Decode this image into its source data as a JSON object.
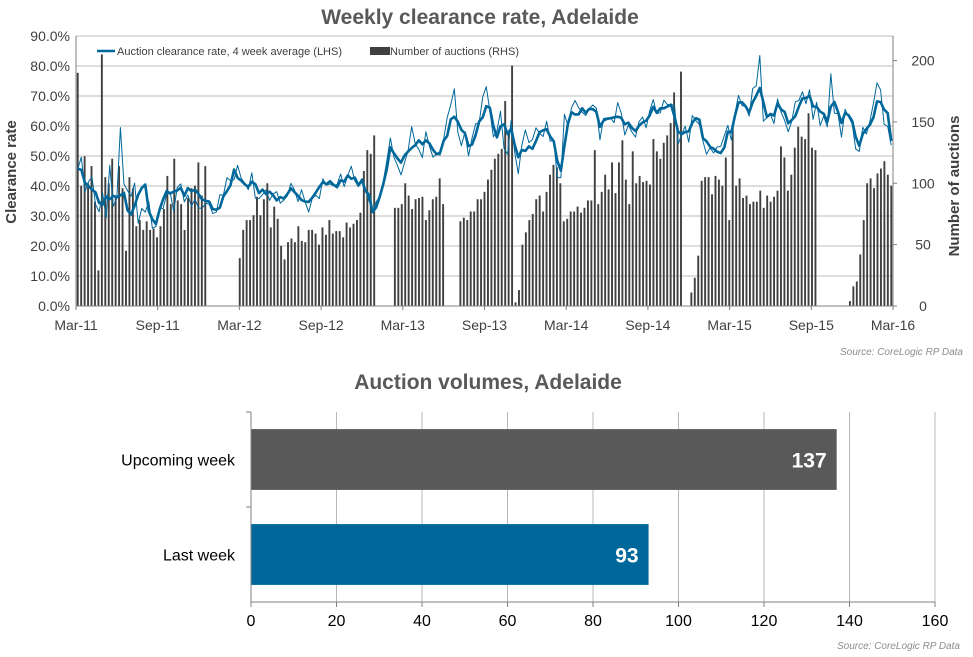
{
  "chart_data": [
    {
      "type": "line",
      "title": "Weekly clearance rate, Adelaide",
      "ylabel": "Clearance rate",
      "y2label": "Number of auctions",
      "source": "Source: CoreLogic  RP Data",
      "x_ticks": [
        "Mar-11",
        "Sep-11",
        "Mar-12",
        "Sep-12",
        "Mar-13",
        "Sep-13",
        "Mar-14",
        "Sep-14",
        "Mar-15",
        "Sep-15",
        "Mar-16"
      ],
      "y_ticks": [
        "0.0%",
        "10.0%",
        "20.0%",
        "30.0%",
        "40.0%",
        "50.0%",
        "60.0%",
        "70.0%",
        "80.0%",
        "90.0%"
      ],
      "y2_ticks": [
        "0",
        "50",
        "100",
        "150",
        "200"
      ],
      "ylim": [
        0,
        90
      ],
      "y2lim": [
        0,
        220
      ],
      "grid": true,
      "legend_position": "top-left",
      "colors": {
        "line": "#00679b",
        "bars": "#404040",
        "grid": "#a6a6a6"
      },
      "series": [
        {
          "name": "Auction clearance rate, 4 week average (LHS)",
          "type": "line",
          "values": [
            45.8,
            45.4,
            41.1,
            40.0,
            38.8,
            37.9,
            34.4,
            33.8,
            36.5,
            35.6,
            36.7,
            36.3,
            36.9,
            37.7,
            31.9,
            30.5,
            33.4,
            37.1,
            39.3,
            40.5,
            31.6,
            28.9,
            27.3,
            32.0,
            35.5,
            38.3,
            37.5,
            38.1,
            38.5,
            39.4,
            36.7,
            39.3,
            38.2,
            38.8,
            37.3,
            35.5,
            35.1,
            34.8,
            32.3,
            32.1,
            32.8,
            36.6,
            38.3,
            40.3,
            45.5,
            42.7,
            41.8,
            40.6,
            39.7,
            41.4,
            40.6,
            37.6,
            38.8,
            37.3,
            38.1,
            36.9,
            35.2,
            36.3,
            35.8,
            37.3,
            39.2,
            38.0,
            36.7,
            35.3,
            34.8,
            34.7,
            36.1,
            37.8,
            39.7,
            41.3,
            40.6,
            41.6,
            40.4,
            39.6,
            41.9,
            41.5,
            43.5,
            42.4,
            42.8,
            40.2,
            42.0,
            38.3,
            37.1,
            31.3,
            32.9,
            36.4,
            40.6,
            45.6,
            52.9,
            50.9,
            49.2,
            47.8,
            50.2,
            51.5,
            52.7,
            53.6,
            55.2,
            53.9,
            55.2,
            54.2,
            52.1,
            50.6,
            51.1,
            55.1,
            56.7,
            62.2,
            63.1,
            61.4,
            58.7,
            57.6,
            53.3,
            53.8,
            57.0,
            61.5,
            62.9,
            66.6,
            66.1,
            60.0,
            56.2,
            59.9,
            60.6,
            57.3,
            59.2,
            53.8,
            49.6,
            52.0,
            51.7,
            53.2,
            52.4,
            55.0,
            57.9,
            58.6,
            58.9,
            56.5,
            54.9,
            48.3,
            45.1,
            53.4,
            60.8,
            64.6,
            63.8,
            63.9,
            65.9,
            64.4,
            65.7,
            65.6,
            64.7,
            59.7,
            61.8,
            62.4,
            62.6,
            62.9,
            63.1,
            62.7,
            60.6,
            61.1,
            59.4,
            58.3,
            60.1,
            61.2,
            61.8,
            63.5,
            66.4,
            64.4,
            65.9,
            65.9,
            66.5,
            67.1,
            63.1,
            58.1,
            57.3,
            58.0,
            58.2,
            61.1,
            62.6,
            62.1,
            55.9,
            54.9,
            53.1,
            52.4,
            51.4,
            51.0,
            52.8,
            58.1,
            57.9,
            63.4,
            67.8,
            67.9,
            66.6,
            64.5,
            67.9,
            70.1,
            72.7,
            68.0,
            63.0,
            64.0,
            63.5,
            67.6,
            65.5,
            64.7,
            60.9,
            62.0,
            63.3,
            66.5,
            69.2,
            69.3,
            70.1,
            66.5,
            66.4,
            64.8,
            64.1,
            61.4,
            66.5,
            68.0,
            64.8,
            61.0,
            64.3,
            63.6,
            61.7,
            56.4,
            53.4,
            57.4,
            59.0,
            60.4,
            62.9,
            68.2,
            68.0,
            65.5,
            64.3,
            55.0
          ],
          "raw_values": [
            45.7,
            49.6,
            38.0,
            41.4,
            43.0,
            33.9,
            31.4,
            37.6,
            29.3,
            46.9,
            33.2,
            36.0,
            59.5,
            40.7,
            38.5,
            36.6,
            41.0,
            27.6,
            32.5,
            31.3,
            34.8,
            25.9,
            26.5,
            32.9,
            32.4,
            37.1,
            38.0,
            31.5,
            39.5,
            40.7,
            34.7,
            37.0,
            33.2,
            35.6,
            32.7,
            32.5,
            34.3,
            33.9,
            30.8,
            31.3,
            37.1,
            37.0,
            42.8,
            41.7,
            42.1,
            46.9,
            42.6,
            40.9,
            38.8,
            44.4,
            35.9,
            35.8,
            37.1,
            38.7,
            35.2,
            37.4,
            38.1,
            34.3,
            35.3,
            36.7,
            40.9,
            38.7,
            34.8,
            38.8,
            34.7,
            31.3,
            35.8,
            36.9,
            35.8,
            42.4,
            40.3,
            40.7,
            40.1,
            40.5,
            44.0,
            39.8,
            43.5,
            46.6,
            41.7,
            39.8,
            42.5,
            38.6,
            35.0,
            31.6,
            34.7,
            36.5,
            41.5,
            48.4,
            56.0,
            49.6,
            46.8,
            43.7,
            47.8,
            51.9,
            59.8,
            54.1,
            52.2,
            49.5,
            58.1,
            53.3,
            49.6,
            50.7,
            50.3,
            55.6,
            62.8,
            67.1,
            72.4,
            57.9,
            53.4,
            58.1,
            50.0,
            56.0,
            60.7,
            61.0,
            69.7,
            73.1,
            65.1,
            56.4,
            58.3,
            64.9,
            52.5,
            50.6,
            61.8,
            51.3,
            44.1,
            53.5,
            58.7,
            54.5,
            55.5,
            59.4,
            57.6,
            56.5,
            61.6,
            54.9,
            55.2,
            42.8,
            42.8,
            63.9,
            60.3,
            66.1,
            68.5,
            66.1,
            64.6,
            63.5,
            65.8,
            67.0,
            65.9,
            55.4,
            62.5,
            62.7,
            62.6,
            61.1,
            67.8,
            64.3,
            57.0,
            60.3,
            58.0,
            56.3,
            61.4,
            63.0,
            59.4,
            65.0,
            68.8,
            64.1,
            64.4,
            68.6,
            67.1,
            67.2,
            66.8,
            53.9,
            57.2,
            59.9,
            54.6,
            63.5,
            61.8,
            60.5,
            54.9,
            50.6,
            52.7,
            51.0,
            53.0,
            53.2,
            56.7,
            60.2,
            55.3,
            64.1,
            70.2,
            66.8,
            66.5,
            63.3,
            72.5,
            73.4,
            83.5,
            61.6,
            62.8,
            63.8,
            60.8,
            69.0,
            64.6,
            61.8,
            58.1,
            61.5,
            68.1,
            68.5,
            71.4,
            67.4,
            72.1,
            62.2,
            67.9,
            60.2,
            63.3,
            59.7,
            77.4,
            64.3,
            64.1,
            56.3,
            65.6,
            63.0,
            60.8,
            52.4,
            51.5,
            59.6,
            57.3,
            61.6,
            67.6,
            74.4,
            72.0,
            60.6,
            59.9,
            53.6
          ]
        },
        {
          "name": "Number of auctions (RHS)",
          "type": "bar",
          "values": [
            190,
            98,
            122,
            100,
            114,
            85,
            29,
            205,
            105,
            100,
            120,
            90,
            114,
            96,
            45,
            105,
            96,
            65,
            70,
            62,
            69,
            62,
            63,
            56,
            65,
            79,
            106,
            83,
            120,
            86,
            83,
            62,
            88,
            96,
            98,
            117,
            90,
            114,
            0,
            0,
            0,
            0,
            0,
            0,
            0,
            0,
            0,
            39,
            62,
            70,
            70,
            74,
            89,
            74,
            87,
            100,
            64,
            81,
            71,
            49,
            38,
            52,
            55,
            52,
            65,
            53,
            52,
            62,
            62,
            59,
            50,
            64,
            58,
            70,
            59,
            61,
            61,
            56,
            68,
            64,
            67,
            70,
            76,
            110,
            127,
            124,
            139,
            0,
            0,
            0,
            0,
            0,
            80,
            80,
            83,
            100,
            90,
            79,
            87,
            88,
            89,
            70,
            78,
            87,
            89,
            104,
            83,
            0,
            0,
            0,
            0,
            69,
            72,
            70,
            77,
            77,
            87,
            87,
            93,
            103,
            111,
            120,
            124,
            128,
            167,
            142,
            196,
            3,
            13,
            50,
            60,
            70,
            75,
            87,
            90,
            77,
            93,
            107,
            115,
            113,
            100,
            69,
            71,
            77,
            77,
            81,
            76,
            80,
            86,
            86,
            127,
            83,
            93,
            107,
            95,
            117,
            92,
            117,
            135,
            103,
            83,
            126,
            100,
            106,
            101,
            102,
            99,
            136,
            126,
            120,
            133,
            139,
            149,
            174,
            146,
            191,
            0,
            0,
            11,
            23,
            41,
            102,
            105,
            105,
            91,
            106,
            103,
            98,
            121,
            70,
            146,
            98,
            104,
            88,
            90,
            83,
            85,
            85,
            94,
            80,
            90,
            85,
            89,
            94,
            130,
            121,
            94,
            107,
            129,
            146,
            138,
            136,
            157,
            129,
            127,
            0,
            0,
            0,
            0,
            0,
            0,
            0,
            0,
            0,
            4,
            16,
            20,
            42,
            70,
            100,
            104,
            96,
            108,
            112,
            118,
            107,
            98
          ]
        }
      ]
    },
    {
      "type": "bar",
      "orientation": "horizontal",
      "title": "Auction volumes, Adelaide",
      "source": "Source: CoreLogic  RP Data",
      "categories": [
        "Upcoming week",
        "Last week"
      ],
      "values": [
        137,
        93
      ],
      "xlim": [
        0,
        160
      ],
      "x_ticks": [
        "0",
        "20",
        "40",
        "60",
        "80",
        "100",
        "120",
        "140",
        "160"
      ],
      "grid": true,
      "colors": {
        "Upcoming week": "#595959",
        "Last week": "#00679b",
        "grid": "#a6a6a6"
      }
    }
  ]
}
